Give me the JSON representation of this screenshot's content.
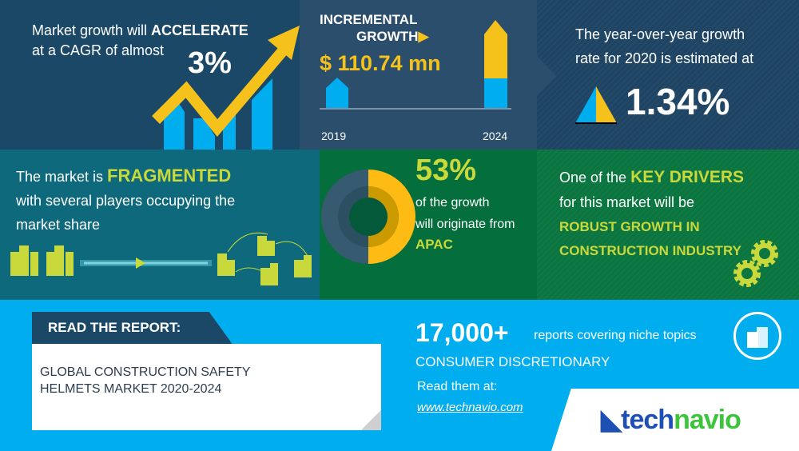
{
  "cagr": {
    "line1_prefix": "Market growth will ",
    "line1_emphasis": "ACCELERATE",
    "line2": "at a CAGR of almost",
    "value": "3%"
  },
  "incremental": {
    "title_line1": "INCREMENTAL",
    "title_line2": "GROWTH",
    "value": "$ 110.74 mn",
    "year_start": "2019",
    "year_end": "2024"
  },
  "yoy": {
    "line1": "The year-over-year growth",
    "line2": "rate for 2020 is estimated at",
    "value": "1.34%"
  },
  "fragmented": {
    "prefix": "The market is ",
    "emphasis": "FRAGMENTED",
    "line2": "with several players occupying the",
    "line3": "market share"
  },
  "region": {
    "value": "53%",
    "line1": "of the growth",
    "line2": "will originate from",
    "region": "APAC",
    "share_fraction": 0.53
  },
  "drivers": {
    "prefix": "One of the ",
    "emphasis": "KEY DRIVERS",
    "line2": "for this market will be",
    "driver_line1": "ROBUST GROWTH IN",
    "driver_line2": "CONSTRUCTION INDUSTRY"
  },
  "report": {
    "header": "READ THE REPORT:",
    "title_line1": "GLOBAL CONSTRUCTION SAFETY",
    "title_line2": "HELMETS MARKET 2020-2024"
  },
  "promo": {
    "count": "17,000+",
    "count_text": "reports covering niche topics",
    "category": "CONSUMER DISCRETIONARY",
    "read_at": "Read them at:",
    "link": "www.technavio.com"
  },
  "brand": {
    "logo_tech": "tech",
    "logo_navio": "navio"
  },
  "colors": {
    "yellow": "#f5c21b",
    "blue": "#00aeef",
    "lime": "#c9d83a",
    "navy": "#1c4868"
  }
}
